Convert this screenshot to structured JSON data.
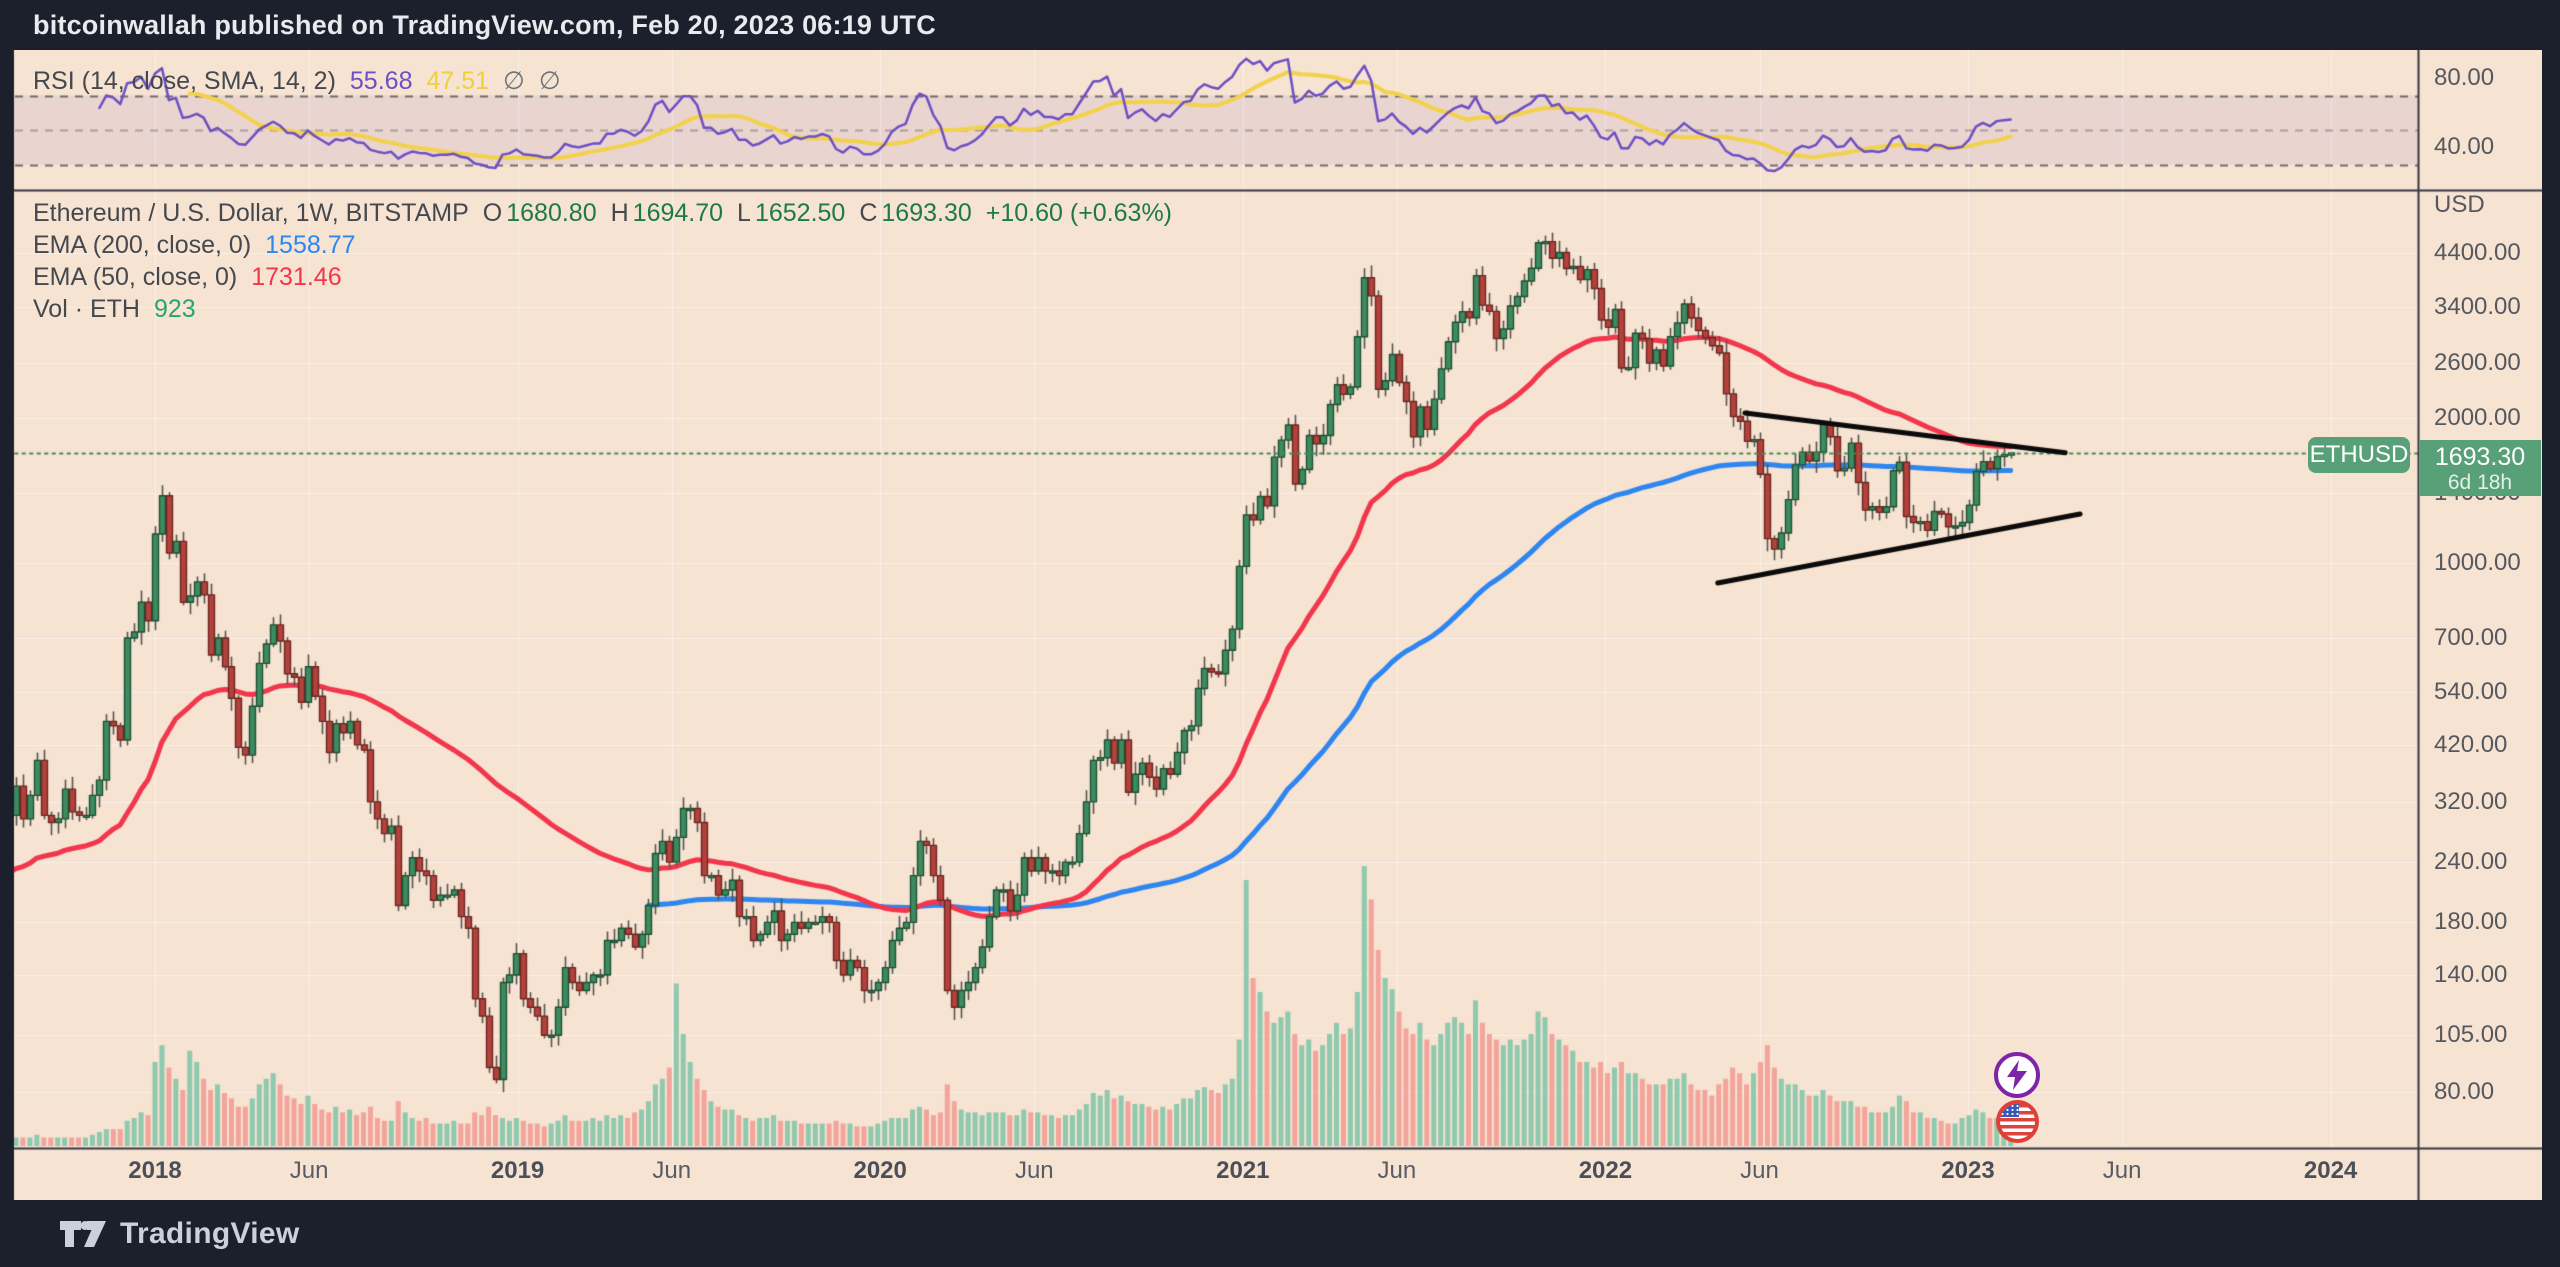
{
  "header": {
    "title": "bitcoinwallah published on TradingView.com, Feb 20, 2023 06:19 UTC"
  },
  "rsi": {
    "title": "RSI (14, close, SMA, 14, 2)",
    "value": "55.68",
    "ma_value": "47.51",
    "hidden_a": "∅",
    "hidden_b": "∅",
    "axis_labels": [
      "80.00",
      "40.00"
    ],
    "levels": {
      "upper": 70,
      "middle": 50,
      "lower": 30
    }
  },
  "legend": {
    "symbol": "Ethereum / U.S. Dollar, 1W, BITSTAMP",
    "o_label": "O",
    "o": "1680.80",
    "h_label": "H",
    "h": "1694.70",
    "l_label": "L",
    "l": "1652.50",
    "c_label": "C",
    "c": "1693.30",
    "change": "+10.60 (+0.63%)",
    "ema200_label": "EMA (200, close, 0)",
    "ema200_value": "1558.77",
    "ema50_label": "EMA (50, close, 0)",
    "ema50_value": "1731.46",
    "vol_label": "Vol · ETH",
    "vol_value": "923"
  },
  "price_axis": {
    "currency": "USD",
    "labels": [
      "4400.00",
      "3400.00",
      "2600.00",
      "2000.00",
      "1400.00",
      "1000.00",
      "700.00",
      "540.00",
      "420.00",
      "320.00",
      "240.00",
      "180.00",
      "140.00",
      "105.00",
      "80.00"
    ]
  },
  "time_axis": [
    {
      "label": "2018",
      "t": 2018,
      "major": true
    },
    {
      "label": "Jun",
      "t": 2018.425,
      "major": false
    },
    {
      "label": "2019",
      "t": 2019,
      "major": true
    },
    {
      "label": "Jun",
      "t": 2019.425,
      "major": false
    },
    {
      "label": "2020",
      "t": 2020,
      "major": true
    },
    {
      "label": "Jun",
      "t": 2020.425,
      "major": false
    },
    {
      "label": "2021",
      "t": 2021,
      "major": true
    },
    {
      "label": "Jun",
      "t": 2021.425,
      "major": false
    },
    {
      "label": "2022",
      "t": 2022,
      "major": true
    },
    {
      "label": "Jun",
      "t": 2022.425,
      "major": false
    },
    {
      "label": "2023",
      "t": 2023,
      "major": true
    },
    {
      "label": "Jun",
      "t": 2023.425,
      "major": false
    },
    {
      "label": "2024",
      "t": 2024,
      "major": true
    }
  ],
  "badge": {
    "symbol": "ETHUSD",
    "price": "1693.30",
    "countdown": "6d 18h"
  },
  "footer": {
    "brand": "TradingView"
  },
  "colors": {
    "background": "#f6e3d2",
    "frame": "#1c202c",
    "grid": "rgba(255,255,255,0.5)",
    "up_body": "#3e8b5f",
    "up_border": "#1c5134",
    "down_body": "#b2423c",
    "down_border": "#6f2621",
    "wick": "#57534e",
    "vol_up": "#8fc9ae",
    "vol_down": "#f3a49b",
    "ema200": "#2e86f0",
    "ema50": "#f2364b",
    "rsi": "#6c4fc4",
    "rsi_ma": "#f2d24b",
    "band": "rgba(126,87,194,0.10)",
    "dashed": "rgba(80,80,80,0.8)",
    "price_line": "#3e8e5e",
    "drawing": "#0b0b0b",
    "badge": "#57a078",
    "ohlc_value": "#1d7a46",
    "label_text": "#45494f"
  },
  "chart_data": {
    "type": "candlestick",
    "symbol": "ETHUSD",
    "exchange": "BITSTAMP",
    "interval": "1W",
    "scale": "log",
    "ylim": [
      61,
      5780
    ],
    "title": "Ethereum / U.S. Dollar, 1W, BITSTAMP",
    "last": {
      "open": 1680.8,
      "high": 1694.7,
      "low": 1652.5,
      "close": 1693.3,
      "change_pts": 10.6,
      "change_pct": 0.63
    },
    "price_line_value": 1693.3,
    "years_order": [
      "2017",
      "2018",
      "2019",
      "2020",
      "2021",
      "2022",
      "2023"
    ],
    "weekly_closes": {
      "2017": [
        225,
        300,
        345,
        295,
        330,
        390,
        300,
        290,
        295,
        340,
        305,
        300,
        300,
        330,
        355,
        470,
        460,
        430,
        700,
        720,
        830,
        760
      ],
      "2018": [
        1150,
        1380,
        1050,
        1110,
        830,
        855,
        915,
        860,
        645,
        700,
        610,
        525,
        415,
        400,
        505,
        620,
        680,
        745,
        690,
        590,
        580,
        515,
        610,
        530,
        470,
        405,
        465,
        445,
        470,
        420,
        410,
        320,
        295,
        275,
        285,
        195,
        225,
        245,
        230,
        225,
        200,
        205,
        205,
        210,
        185,
        175,
        125,
        115,
        90,
        85,
        135,
        140
      ],
      "2019": [
        155,
        125,
        120,
        115,
        105,
        105,
        120,
        145,
        135,
        130,
        135,
        140,
        140,
        165,
        165,
        175,
        170,
        160,
        170,
        195,
        250,
        265,
        240,
        270,
        310,
        310,
        290,
        225,
        225,
        205,
        210,
        220,
        185,
        185,
        165,
        170,
        180,
        190,
        165,
        170,
        180,
        175,
        180,
        180,
        185,
        180,
        150,
        140,
        150,
        145,
        130,
        130
      ],
      "2020": [
        135,
        145,
        165,
        175,
        180,
        225,
        265,
        260,
        225,
        200,
        130,
        120,
        130,
        135,
        145,
        160,
        185,
        210,
        210,
        190,
        205,
        245,
        230,
        245,
        230,
        230,
        225,
        240,
        240,
        275,
        320,
        390,
        395,
        430,
        385,
        430,
        335,
        365,
        385,
        360,
        340,
        375,
        365,
        405,
        450,
        460,
        550,
        605,
        595,
        590,
        660,
        730
      ],
      "2021": [
        985,
        1260,
        1230,
        1375,
        1315,
        1660,
        1800,
        1935,
        1460,
        1565,
        1840,
        1770,
        1840,
        2135,
        2345,
        2240,
        2320,
        2950,
        3910,
        3585,
        2295,
        2390,
        2710,
        2370,
        2165,
        1830,
        2110,
        1895,
        2190,
        2530,
        2880,
        3160,
        3325,
        3230,
        3950,
        3430,
        3330,
        2925,
        3060,
        3415,
        3575,
        3850,
        4090,
        4620,
        4645,
        4290,
        4410,
        4085,
        4125,
        3875,
        4065,
        3715
      ],
      "2022": [
        3195,
        3085,
        3360,
        2540,
        2545,
        3000,
        2920,
        2600,
        2770,
        2565,
        2950,
        3150,
        3450,
        3225,
        3040,
        2935,
        2825,
        2730,
        2245,
        2015,
        1970,
        1790,
        1805,
        1530,
        1125,
        1070,
        1155,
        1355,
        1600,
        1700,
        1630,
        1700,
        1940,
        1830,
        1555,
        1575,
        1775,
        1470,
        1290,
        1310,
        1275,
        1310,
        1555,
        1620,
        1250,
        1215,
        1220,
        1170,
        1280,
        1265,
        1190,
        1195
      ],
      "2023": [
        1215,
        1320,
        1550,
        1625,
        1570,
        1665,
        1680,
        1693.3
      ]
    },
    "weekly_volumes": {
      "2017": [
        2,
        2,
        3,
        3,
        3,
        4,
        3,
        3,
        3,
        3,
        3,
        3,
        3,
        4,
        5,
        6,
        6,
        6,
        9,
        10,
        12,
        11
      ],
      "2018": [
        30,
        36,
        28,
        24,
        20,
        34,
        30,
        24,
        20,
        22,
        19,
        17,
        14,
        14,
        17,
        22,
        24,
        26,
        22,
        18,
        17,
        15,
        18,
        15,
        13,
        12,
        14,
        12,
        13,
        11,
        12,
        14,
        10,
        9,
        9,
        16,
        12,
        10,
        9,
        10,
        8,
        8,
        8,
        9,
        8,
        8,
        12,
        11,
        14,
        11,
        10,
        9
      ],
      "2019": [
        10,
        9,
        8,
        8,
        7,
        8,
        9,
        11,
        9,
        9,
        9,
        10,
        9,
        11,
        10,
        11,
        10,
        12,
        13,
        16,
        22,
        24,
        28,
        58,
        40,
        30,
        24,
        20,
        16,
        14,
        13,
        13,
        11,
        10,
        9,
        10,
        10,
        11,
        9,
        9,
        9,
        8,
        8,
        8,
        8,
        8,
        9,
        8,
        8,
        7,
        7,
        7
      ],
      "2020": [
        8,
        9,
        10,
        10,
        10,
        13,
        14,
        13,
        11,
        12,
        22,
        16,
        13,
        12,
        12,
        11,
        12,
        12,
        12,
        11,
        11,
        13,
        12,
        12,
        11,
        11,
        10,
        11,
        11,
        13,
        15,
        19,
        18,
        20,
        17,
        18,
        16,
        15,
        15,
        14,
        13,
        14,
        13,
        15,
        17,
        17,
        20,
        21,
        20,
        19,
        22,
        24
      ],
      "2021": [
        38,
        95,
        60,
        55,
        48,
        44,
        46,
        48,
        40,
        36,
        38,
        34,
        36,
        40,
        44,
        40,
        42,
        55,
        100,
        88,
        70,
        60,
        56,
        48,
        42,
        40,
        44,
        38,
        36,
        40,
        44,
        46,
        44,
        40,
        52,
        44,
        40,
        38,
        36,
        38,
        36,
        38,
        40,
        48,
        46,
        40,
        38,
        36,
        34,
        30,
        30,
        28
      ],
      "2022": [
        30,
        26,
        28,
        30,
        26,
        26,
        24,
        22,
        22,
        22,
        24,
        24,
        26,
        22,
        20,
        20,
        18,
        22,
        24,
        28,
        26,
        22,
        26,
        30,
        36,
        28,
        24,
        22,
        22,
        20,
        18,
        18,
        20,
        18,
        16,
        16,
        16,
        14,
        14,
        12,
        12,
        12,
        14,
        18,
        16,
        12,
        12,
        10,
        10,
        9,
        8,
        8
      ],
      "2023": [
        10,
        11,
        13,
        12,
        10,
        10,
        9,
        8
      ]
    },
    "indicators": [
      {
        "name": "RSI",
        "params": "14, close, SMA, 14, 2",
        "value": 55.68,
        "ma_value": 47.51
      },
      {
        "name": "EMA",
        "params": "200, close, 0",
        "value": 1558.77
      },
      {
        "name": "EMA",
        "params": "50, close, 0",
        "value": 1731.46
      },
      {
        "name": "Volume",
        "symbol": "ETH",
        "value": 923
      }
    ],
    "drawings": [
      {
        "name": "pennant-upper-trendline",
        "t1": 2022.385,
        "p1": 2050,
        "t2": 2023.268,
        "p2": 1695
      },
      {
        "name": "pennant-lower-trendline",
        "t1": 2022.31,
        "p1": 910,
        "t2": 2023.309,
        "p2": 1265
      }
    ]
  }
}
